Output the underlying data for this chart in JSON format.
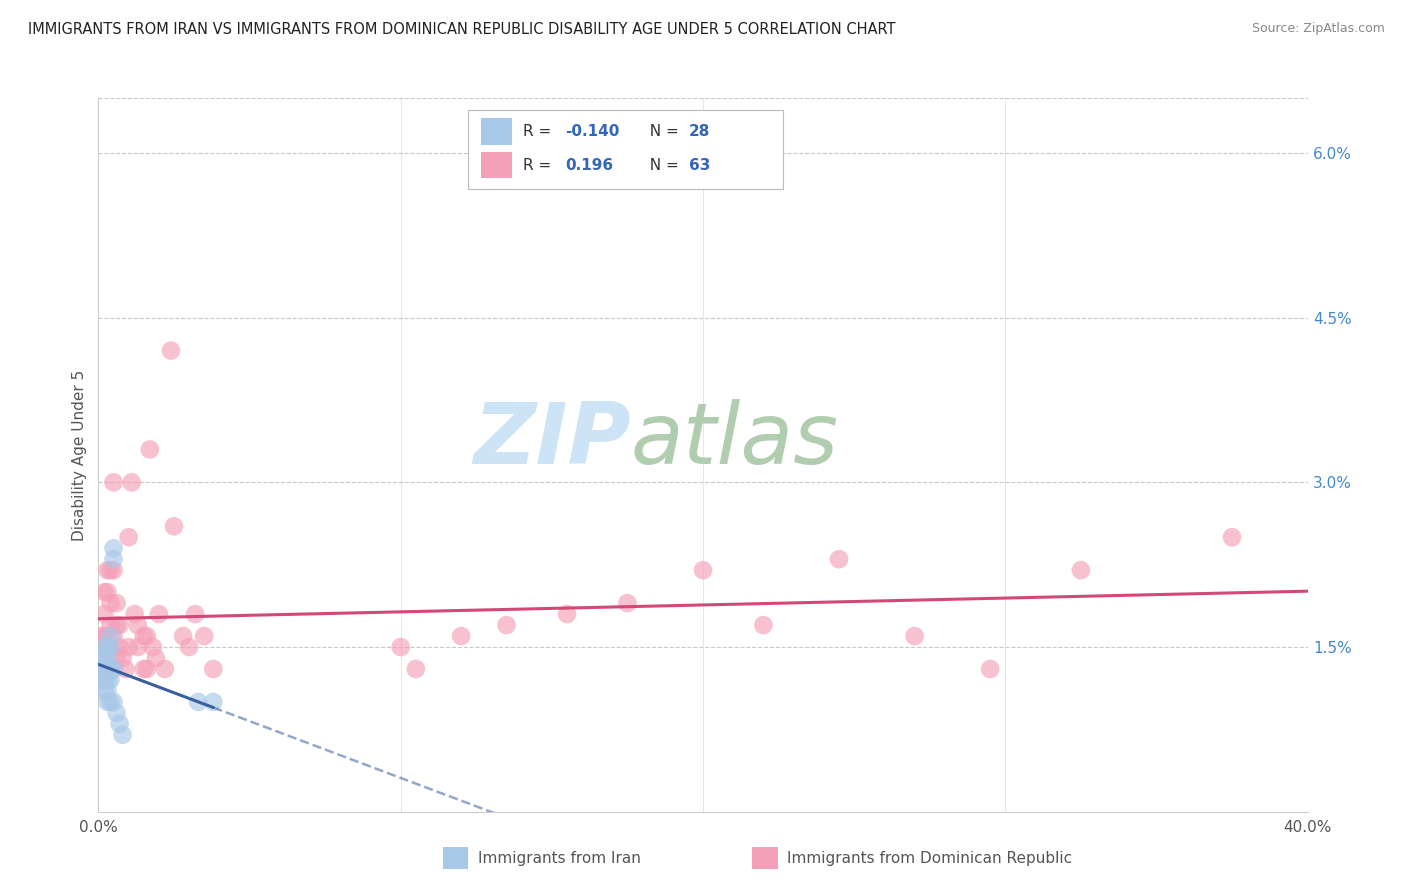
{
  "title": "IMMIGRANTS FROM IRAN VS IMMIGRANTS FROM DOMINICAN REPUBLIC DISABILITY AGE UNDER 5 CORRELATION CHART",
  "source": "Source: ZipAtlas.com",
  "ylabel": "Disability Age Under 5",
  "xlim": [
    0.0,
    0.4
  ],
  "ylim": [
    0.0,
    0.065
  ],
  "yticks_right": [
    0.015,
    0.03,
    0.045,
    0.06
  ],
  "ytick_right_labels": [
    "1.5%",
    "3.0%",
    "4.5%",
    "6.0%"
  ],
  "iran_x": [
    0.001,
    0.001,
    0.001,
    0.002,
    0.002,
    0.002,
    0.002,
    0.002,
    0.003,
    0.003,
    0.003,
    0.003,
    0.003,
    0.003,
    0.004,
    0.004,
    0.004,
    0.004,
    0.004,
    0.005,
    0.005,
    0.005,
    0.005,
    0.006,
    0.007,
    0.008,
    0.033,
    0.038
  ],
  "iran_y": [
    0.014,
    0.013,
    0.012,
    0.015,
    0.014,
    0.013,
    0.012,
    0.011,
    0.015,
    0.014,
    0.013,
    0.012,
    0.011,
    0.01,
    0.016,
    0.015,
    0.013,
    0.012,
    0.01,
    0.024,
    0.023,
    0.013,
    0.01,
    0.009,
    0.008,
    0.007,
    0.01,
    0.01
  ],
  "dom_x": [
    0.001,
    0.001,
    0.001,
    0.002,
    0.002,
    0.002,
    0.002,
    0.003,
    0.003,
    0.003,
    0.003,
    0.003,
    0.004,
    0.004,
    0.004,
    0.004,
    0.004,
    0.005,
    0.005,
    0.005,
    0.005,
    0.006,
    0.006,
    0.006,
    0.007,
    0.007,
    0.008,
    0.009,
    0.01,
    0.01,
    0.011,
    0.012,
    0.013,
    0.013,
    0.015,
    0.015,
    0.016,
    0.016,
    0.017,
    0.018,
    0.019,
    0.02,
    0.022,
    0.024,
    0.025,
    0.028,
    0.03,
    0.032,
    0.035,
    0.038,
    0.1,
    0.105,
    0.12,
    0.135,
    0.155,
    0.175,
    0.2,
    0.22,
    0.245,
    0.27,
    0.295,
    0.325,
    0.375
  ],
  "dom_y": [
    0.016,
    0.015,
    0.014,
    0.02,
    0.018,
    0.016,
    0.014,
    0.022,
    0.02,
    0.016,
    0.015,
    0.013,
    0.022,
    0.019,
    0.017,
    0.015,
    0.013,
    0.03,
    0.022,
    0.016,
    0.013,
    0.019,
    0.017,
    0.014,
    0.017,
    0.015,
    0.014,
    0.013,
    0.015,
    0.025,
    0.03,
    0.018,
    0.017,
    0.015,
    0.016,
    0.013,
    0.016,
    0.013,
    0.033,
    0.015,
    0.014,
    0.018,
    0.013,
    0.042,
    0.026,
    0.016,
    0.015,
    0.018,
    0.016,
    0.013,
    0.015,
    0.013,
    0.016,
    0.017,
    0.018,
    0.019,
    0.022,
    0.017,
    0.023,
    0.016,
    0.013,
    0.022,
    0.025
  ],
  "iran_color": "#a8c8e8",
  "dom_color": "#f4a0b8",
  "iran_line_color": "#3a5fa0",
  "dom_line_color": "#d44878",
  "grid_color": "#c8c8c8",
  "background_color": "#ffffff"
}
